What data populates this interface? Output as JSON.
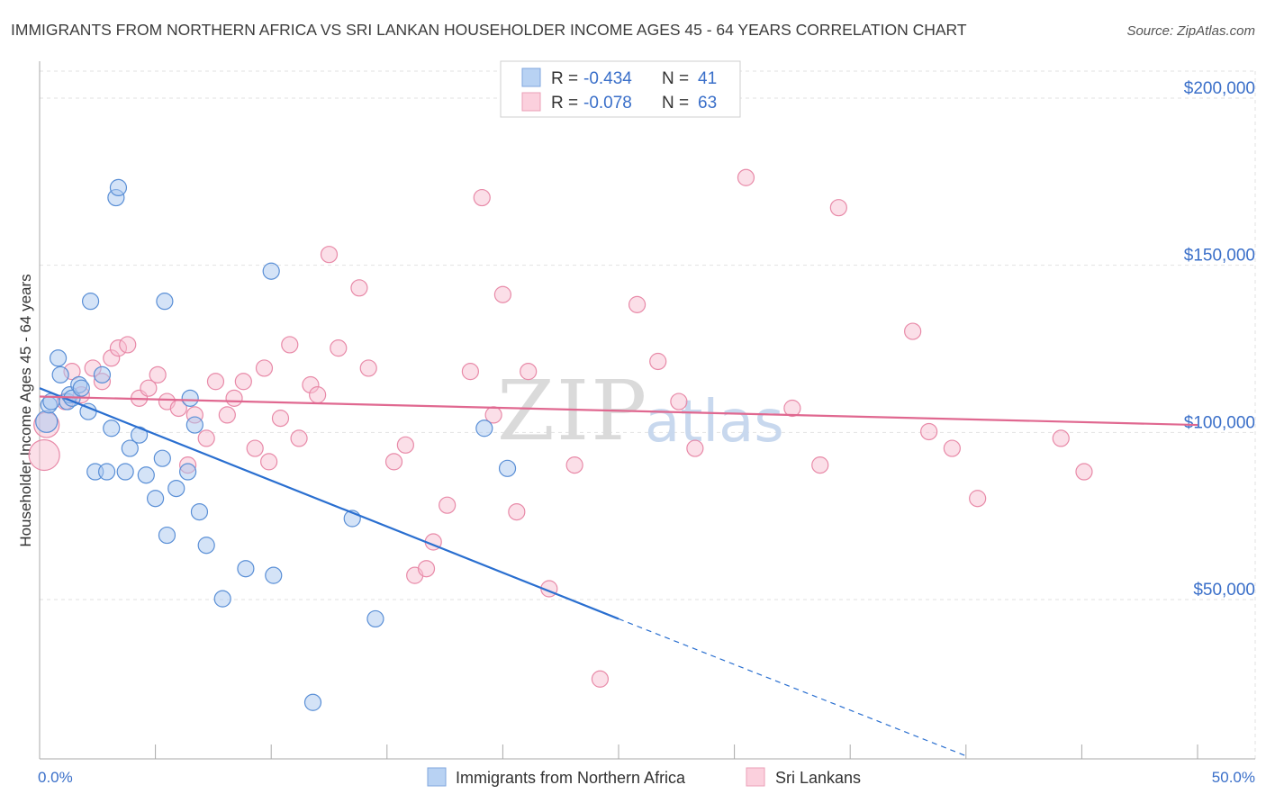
{
  "chart_data": {
    "type": "scatter",
    "title": "IMMIGRANTS FROM NORTHERN AFRICA VS SRI LANKAN HOUSEHOLDER INCOME AGES 45 - 64 YEARS CORRELATION CHART",
    "source": "Source: ZipAtlas.com",
    "ylabel": "Householder Income Ages 45 - 64 years",
    "xlabel": "",
    "xlim": [
      0,
      50
    ],
    "ylim": [
      0,
      205000
    ],
    "x_tick_labels": [
      "0.0%",
      "50.0%"
    ],
    "y_ticks": [
      {
        "value": 200000,
        "label": "$200,000"
      },
      {
        "value": 150000,
        "label": "$150,000"
      },
      {
        "value": 100000,
        "label": "$100,000"
      },
      {
        "value": 50000,
        "label": "$50,000"
      }
    ],
    "grid": true,
    "watermark": {
      "zip": "ZIP",
      "atlas": "atlas"
    },
    "legend": {
      "placement": "top-center",
      "rows": [
        {
          "r_label": "R =",
          "r_value": "-0.434",
          "n_label": "N =",
          "n_value": "41"
        },
        {
          "r_label": "R =",
          "r_value": "-0.078",
          "n_label": "N =",
          "n_value": "63"
        }
      ]
    },
    "series": [
      {
        "name": "Immigrants from Northern Africa",
        "color": "#a9c8ef",
        "stroke": "#5a8fd6",
        "line_color": "#2a6fd0",
        "trend": {
          "x0": 0,
          "y0": 110000,
          "x1": 25,
          "y1": 41000,
          "dash_x1": 40,
          "dash_y1": 0
        },
        "points": [
          [
            0.3,
            100000
          ],
          [
            0.4,
            105000
          ],
          [
            0.5,
            106000
          ],
          [
            0.8,
            119000
          ],
          [
            0.9,
            114000
          ],
          [
            1.2,
            106000
          ],
          [
            1.3,
            108000
          ],
          [
            1.4,
            107000
          ],
          [
            1.7,
            111000
          ],
          [
            1.8,
            110000
          ],
          [
            2.1,
            103000
          ],
          [
            2.2,
            136000
          ],
          [
            2.4,
            85000
          ],
          [
            2.7,
            114000
          ],
          [
            2.9,
            85000
          ],
          [
            3.1,
            98000
          ],
          [
            3.3,
            167000
          ],
          [
            3.4,
            170000
          ],
          [
            3.7,
            85000
          ],
          [
            3.9,
            92000
          ],
          [
            4.3,
            96000
          ],
          [
            4.6,
            84000
          ],
          [
            5.0,
            77000
          ],
          [
            5.3,
            89000
          ],
          [
            5.4,
            136000
          ],
          [
            5.5,
            66000
          ],
          [
            5.9,
            80000
          ],
          [
            6.4,
            85000
          ],
          [
            6.5,
            107000
          ],
          [
            6.7,
            99000
          ],
          [
            6.9,
            73000
          ],
          [
            7.2,
            63000
          ],
          [
            7.9,
            47000
          ],
          [
            8.9,
            56000
          ],
          [
            10.0,
            145000
          ],
          [
            10.1,
            54000
          ],
          [
            11.8,
            16000
          ],
          [
            13.5,
            71000
          ],
          [
            14.5,
            41000
          ],
          [
            19.2,
            98000
          ],
          [
            20.2,
            86000
          ]
        ]
      },
      {
        "name": "Sri Lankans",
        "color": "#f8c0d1",
        "stroke": "#e88aa8",
        "line_color": "#e06890",
        "trend": {
          "x0": 0,
          "y0": 107500,
          "x1": 50,
          "y1": 99000
        },
        "points": [
          [
            0.2,
            90000
          ],
          [
            0.3,
            99000
          ],
          [
            1.1,
            106000
          ],
          [
            1.4,
            115000
          ],
          [
            1.8,
            108000
          ],
          [
            2.3,
            116000
          ],
          [
            2.7,
            112000
          ],
          [
            3.1,
            119000
          ],
          [
            3.4,
            122000
          ],
          [
            3.8,
            123000
          ],
          [
            4.3,
            107000
          ],
          [
            4.7,
            110000
          ],
          [
            5.1,
            114000
          ],
          [
            5.5,
            106000
          ],
          [
            6.0,
            104000
          ],
          [
            6.4,
            87000
          ],
          [
            6.7,
            102000
          ],
          [
            7.2,
            95000
          ],
          [
            7.6,
            112000
          ],
          [
            8.1,
            102000
          ],
          [
            8.4,
            107000
          ],
          [
            8.8,
            112000
          ],
          [
            9.3,
            92000
          ],
          [
            9.7,
            116000
          ],
          [
            9.9,
            88000
          ],
          [
            10.4,
            101000
          ],
          [
            10.8,
            123000
          ],
          [
            11.2,
            95000
          ],
          [
            11.7,
            111000
          ],
          [
            12.0,
            108000
          ],
          [
            12.5,
            150000
          ],
          [
            12.9,
            122000
          ],
          [
            13.8,
            140000
          ],
          [
            14.2,
            116000
          ],
          [
            15.3,
            88000
          ],
          [
            15.8,
            93000
          ],
          [
            16.2,
            54000
          ],
          [
            16.7,
            56000
          ],
          [
            17.0,
            64000
          ],
          [
            17.6,
            75000
          ],
          [
            18.6,
            115000
          ],
          [
            19.1,
            167000
          ],
          [
            19.6,
            102000
          ],
          [
            20.0,
            138000
          ],
          [
            20.6,
            73000
          ],
          [
            21.1,
            115000
          ],
          [
            22.0,
            50000
          ],
          [
            23.1,
            87000
          ],
          [
            24.2,
            23000
          ],
          [
            25.8,
            135000
          ],
          [
            26.7,
            118000
          ],
          [
            27.6,
            106000
          ],
          [
            28.3,
            92000
          ],
          [
            30.5,
            173000
          ],
          [
            32.5,
            104000
          ],
          [
            33.7,
            87000
          ],
          [
            34.5,
            164000
          ],
          [
            37.7,
            127000
          ],
          [
            38.4,
            97000
          ],
          [
            39.4,
            92000
          ],
          [
            40.5,
            77000
          ],
          [
            44.1,
            95000
          ],
          [
            45.1,
            85000
          ]
        ]
      }
    ],
    "bottom_legend": [
      "Immigrants from Northern Africa",
      "Sri Lankans"
    ]
  }
}
